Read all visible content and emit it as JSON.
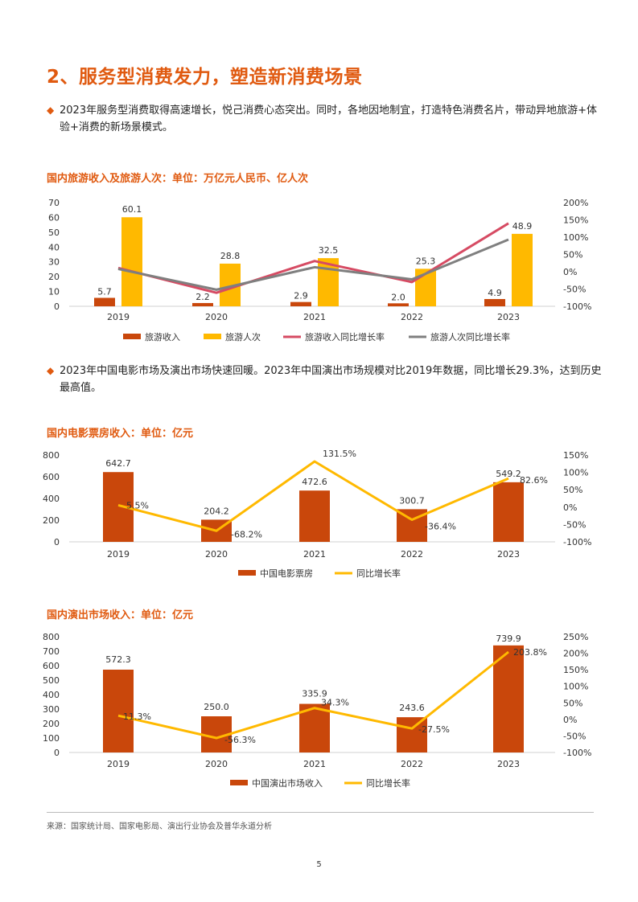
{
  "page": {
    "title": "2、服务型消费发力，塑造新消费场景",
    "bullets": [
      "2023年服务型消费取得高速增长，悦己消费心态突出。同时，各地因地制宜，打造特色消费名片，带动异地旅游+体验+消费的新场景模式。",
      "2023年中国电影市场及演出市场快速回暖。2023年中国演出市场规模对比2019年数据，同比增长29.3%，达到历史最高值。"
    ],
    "source": "来源：国家统计局、国家电影局、演出行业协会及普华永道分析",
    "page_number": "5"
  },
  "colors": {
    "accent": "#E05A10",
    "bar_dark": "#C9470B",
    "bar_gold": "#FFB900",
    "line_red": "#D64B63",
    "line_gray": "#7F7F7F",
    "line_gold": "#FFB900"
  },
  "chart_data": [
    {
      "type": "bar",
      "title": "国内旅游收入及旅游人次：单位：万亿元人民币、亿人次",
      "categories": [
        "2019",
        "2020",
        "2021",
        "2022",
        "2023"
      ],
      "ylim": [
        0,
        70
      ],
      "yticks": [
        "70",
        "60",
        "50",
        "40",
        "30",
        "20",
        "10",
        "0"
      ],
      "y2lim": [
        -100,
        200
      ],
      "y2ticks": [
        "200%",
        "150%",
        "100%",
        "50%",
        "0%",
        "-50%",
        "-100%"
      ],
      "series": [
        {
          "name": "旅游收入",
          "kind": "bar",
          "axis": "left",
          "values": [
            5.7,
            2.2,
            2.9,
            2.0,
            4.9
          ],
          "labels": [
            "5.7",
            "2.2",
            "2.9",
            "2.0",
            "4.9"
          ]
        },
        {
          "name": "旅游人次",
          "kind": "bar",
          "axis": "left",
          "values": [
            60.1,
            28.8,
            32.5,
            25.3,
            48.9
          ],
          "labels": [
            "60.1",
            "28.8",
            "32.5",
            "25.3",
            "48.9"
          ]
        },
        {
          "name": "旅游收入同比增长率",
          "kind": "line",
          "axis": "right",
          "values": [
            11,
            -61,
            31,
            -30,
            140
          ]
        },
        {
          "name": "旅游人次同比增长率",
          "kind": "line",
          "axis": "right",
          "values": [
            8,
            -52,
            13,
            -22,
            93
          ]
        }
      ]
    },
    {
      "type": "bar",
      "title": "国内电影票房收入：单位：亿元",
      "categories": [
        "2019",
        "2020",
        "2021",
        "2022",
        "2023"
      ],
      "ylim": [
        0,
        800
      ],
      "yticks": [
        "800",
        "600",
        "400",
        "200",
        "0"
      ],
      "y2lim": [
        -100,
        150
      ],
      "y2ticks": [
        "150%",
        "100%",
        "50%",
        "0%",
        "-50%",
        "-100%"
      ],
      "series": [
        {
          "name": "中国电影票房",
          "kind": "bar",
          "axis": "left",
          "values": [
            642.7,
            204.2,
            472.6,
            300.7,
            549.2
          ],
          "labels": [
            "642.7",
            "204.2",
            "472.6",
            "300.7",
            "549.2"
          ]
        },
        {
          "name": "同比增长率",
          "kind": "line",
          "axis": "right",
          "values": [
            5.5,
            -68.2,
            131.5,
            -36.4,
            82.6
          ],
          "labels": [
            "5.5%",
            "-68.2%",
            "131.5%",
            "-36.4%",
            "82.6%"
          ]
        }
      ]
    },
    {
      "type": "bar",
      "title": "国内演出市场收入：单位：亿元",
      "categories": [
        "2019",
        "2020",
        "2021",
        "2022",
        "2023"
      ],
      "ylim": [
        0,
        800
      ],
      "yticks": [
        "800",
        "700",
        "600",
        "500",
        "400",
        "300",
        "200",
        "100",
        "0"
      ],
      "y2lim": [
        -100,
        250
      ],
      "y2ticks": [
        "250%",
        "200%",
        "150%",
        "100%",
        "50%",
        "0%",
        "-50%",
        "-100%"
      ],
      "series": [
        {
          "name": "中国演出市场收入",
          "kind": "bar",
          "axis": "left",
          "values": [
            572.3,
            250.0,
            335.9,
            243.6,
            739.9
          ],
          "labels": [
            "572.3",
            "250.0",
            "335.9",
            "243.6",
            "739.9"
          ]
        },
        {
          "name": "同比增长率",
          "kind": "line",
          "axis": "right",
          "values": [
            11.3,
            -56.3,
            34.3,
            -27.5,
            203.8
          ],
          "labels": [
            "11.3%",
            "-56.3%",
            "34.3%",
            "-27.5%",
            "203.8%"
          ]
        }
      ]
    }
  ]
}
